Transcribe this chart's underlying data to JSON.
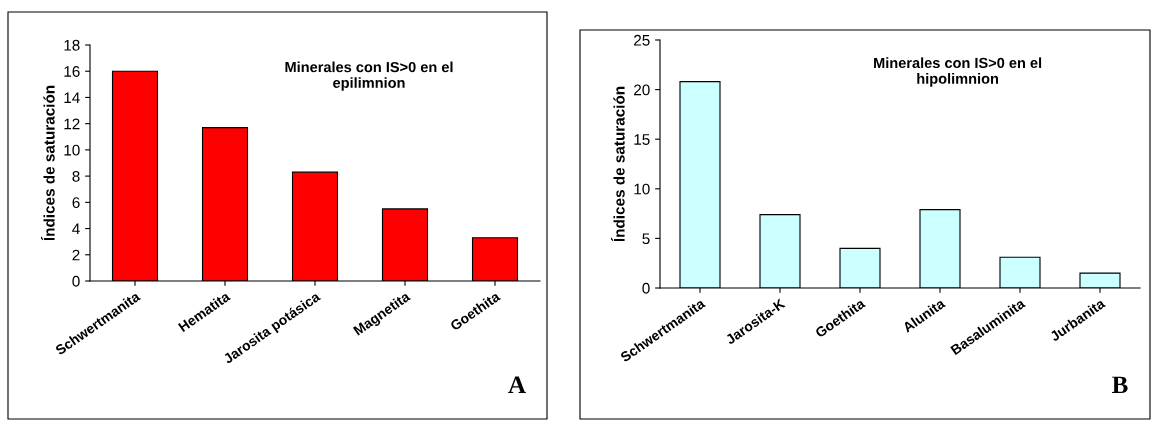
{
  "chart_data": [
    {
      "type": "bar",
      "ylabel": "Índices de saturación",
      "categories": [
        "Schwertmanita",
        "Hematita",
        "Jarosita potásica",
        "Magnetita",
        "Goethita"
      ],
      "values": [
        16,
        11.7,
        8.3,
        5.5,
        3.3
      ],
      "color": "#ff0000",
      "ylim": [
        0,
        18
      ],
      "yticks": [
        0,
        2,
        4,
        6,
        8,
        10,
        12,
        14,
        16,
        18
      ],
      "grid": false,
      "annotations": [
        "Minerales con IS>0 en el\nepilimnion",
        "A"
      ]
    },
    {
      "type": "bar",
      "ylabel": "Índices de saturación",
      "categories": [
        "Schwertmanita",
        "Jarosita-K",
        "Goethita",
        "Alunita",
        "Basaluminita",
        "Jurbanita"
      ],
      "values": [
        20.8,
        7.4,
        4.0,
        7.9,
        3.1,
        1.5
      ],
      "color": "#ccffff",
      "ylim": [
        0,
        25
      ],
      "yticks": [
        0,
        5,
        10,
        15,
        20,
        25
      ],
      "grid": false,
      "annotations": [
        "Minerales con IS>0 en el\nhipolimnion",
        "B"
      ]
    }
  ]
}
